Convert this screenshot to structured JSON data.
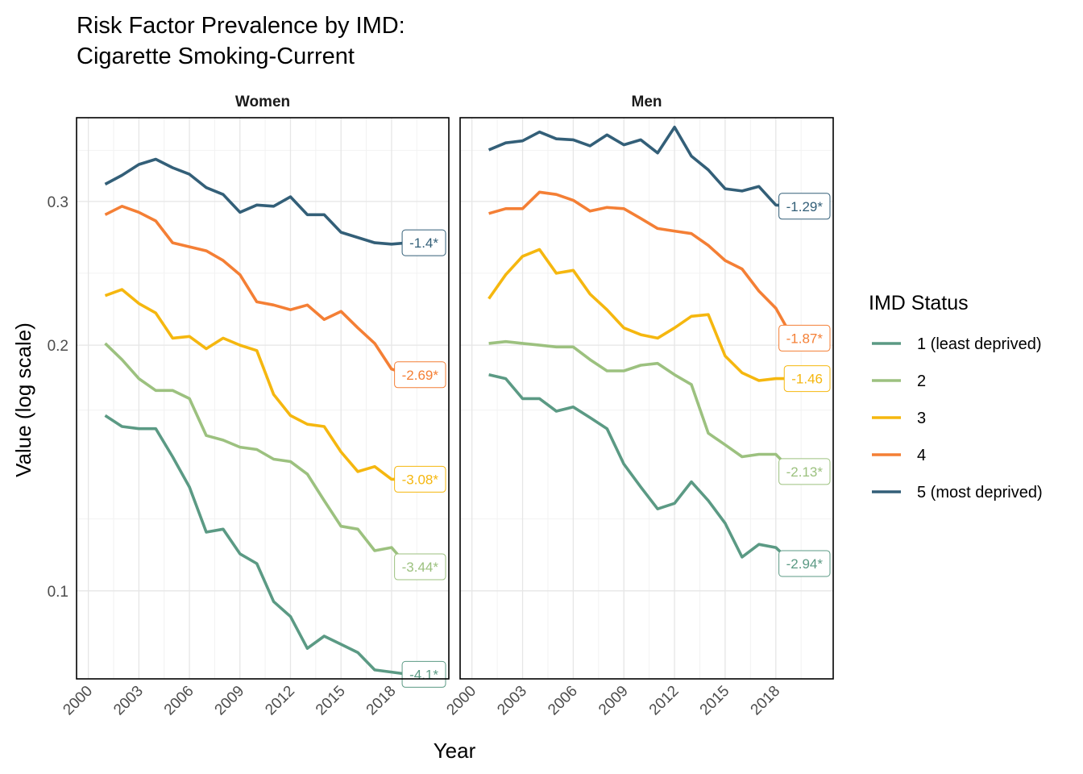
{
  "chart_data": {
    "type": "line",
    "title_lines": [
      "Risk Factor Prevalence by IMD:",
      "Cigarette Smoking-Current"
    ],
    "xlabel": "Year",
    "ylabel": "Value (log scale)",
    "yscale": "log",
    "ylim": [
      0.078,
      0.38
    ],
    "yticks": [
      0.1,
      0.2,
      0.3
    ],
    "ytick_labels": [
      "0.1",
      "0.2",
      "0.3"
    ],
    "xlim": [
      1999.3,
      2021.4
    ],
    "xticks": [
      2000,
      2003,
      2006,
      2009,
      2012,
      2015,
      2018
    ],
    "xtick_labels": [
      "2000",
      "2003",
      "2006",
      "2009",
      "2012",
      "2015",
      "2018"
    ],
    "grid": true,
    "legend": {
      "title": "IMD Status",
      "position": "right",
      "entries": [
        "1 (least deprived)",
        "2",
        "3",
        "4",
        "5 (most deprived)"
      ]
    },
    "colors": {
      "1": "#5b9a84",
      "2": "#9cc17f",
      "3": "#f5b70f",
      "4": "#f47f35",
      "5": "#335f78"
    },
    "years": [
      2001,
      2002,
      2003,
      2004,
      2005,
      2006,
      2007,
      2008,
      2009,
      2010,
      2011,
      2012,
      2013,
      2014,
      2015,
      2016,
      2017,
      2018,
      2019
    ],
    "panels": [
      {
        "name": "Women",
        "series": [
          {
            "group": "1",
            "values": [
              0.164,
              0.159,
              0.158,
              0.158,
              0.146,
              0.134,
              0.118,
              0.119,
              0.111,
              0.108,
              0.097,
              0.093,
              0.085,
              0.088,
              0.086,
              0.084,
              0.08,
              0.0795,
              0.079
            ],
            "label": "-4.1*"
          },
          {
            "group": "2",
            "values": [
              0.201,
              0.192,
              0.182,
              0.176,
              0.176,
              0.172,
              0.155,
              0.153,
              0.15,
              0.149,
              0.145,
              0.144,
              0.139,
              0.129,
              0.12,
              0.119,
              0.112,
              0.113,
              0.107
            ],
            "label": "-3.44*"
          },
          {
            "group": "3",
            "values": [
              0.23,
              0.234,
              0.225,
              0.219,
              0.204,
              0.205,
              0.198,
              0.204,
              0.2,
              0.197,
              0.174,
              0.164,
              0.16,
              0.159,
              0.148,
              0.14,
              0.142,
              0.137,
              0.137
            ],
            "label": "-3.08*"
          },
          {
            "group": "4",
            "values": [
              0.289,
              0.296,
              0.291,
              0.284,
              0.267,
              0.264,
              0.261,
              0.254,
              0.244,
              0.226,
              0.224,
              0.221,
              0.224,
              0.215,
              0.22,
              0.21,
              0.201,
              0.187,
              0.184
            ],
            "label": "-2.69*"
          },
          {
            "group": "5",
            "values": [
              0.315,
              0.323,
              0.333,
              0.338,
              0.33,
              0.324,
              0.312,
              0.306,
              0.291,
              0.297,
              0.296,
              0.304,
              0.289,
              0.289,
              0.275,
              0.271,
              0.267,
              0.266,
              0.267
            ],
            "label": "-1.4*"
          }
        ]
      },
      {
        "name": "Men",
        "series": [
          {
            "group": "1",
            "values": [
              0.184,
              0.182,
              0.172,
              0.172,
              0.166,
              0.168,
              0.163,
              0.158,
              0.143,
              0.134,
              0.126,
              0.128,
              0.136,
              0.129,
              0.121,
              0.11,
              0.114,
              0.113,
              0.108
            ],
            "label": "-2.94*"
          },
          {
            "group": "2",
            "values": [
              0.201,
              0.202,
              0.201,
              0.2,
              0.199,
              0.199,
              0.192,
              0.186,
              0.186,
              0.189,
              0.19,
              0.184,
              0.179,
              0.156,
              0.151,
              0.146,
              0.147,
              0.147,
              0.14
            ],
            "label": "-2.13*"
          },
          {
            "group": "3",
            "values": [
              0.228,
              0.244,
              0.257,
              0.262,
              0.245,
              0.247,
              0.231,
              0.221,
              0.21,
              0.206,
              0.204,
              0.21,
              0.217,
              0.218,
              0.194,
              0.185,
              0.181,
              0.182,
              0.182
            ],
            "label": "-1.46"
          },
          {
            "group": "4",
            "values": [
              0.29,
              0.294,
              0.294,
              0.308,
              0.306,
              0.301,
              0.292,
              0.295,
              0.294,
              0.286,
              0.278,
              0.276,
              0.274,
              0.265,
              0.254,
              0.248,
              0.233,
              0.222,
              0.204
            ],
            "label": "-1.87*"
          },
          {
            "group": "5",
            "values": [
              0.347,
              0.354,
              0.356,
              0.365,
              0.358,
              0.357,
              0.351,
              0.362,
              0.352,
              0.357,
              0.344,
              0.37,
              0.341,
              0.328,
              0.311,
              0.309,
              0.313,
              0.297,
              0.296
            ],
            "label": "-1.29*"
          }
        ]
      }
    ]
  }
}
